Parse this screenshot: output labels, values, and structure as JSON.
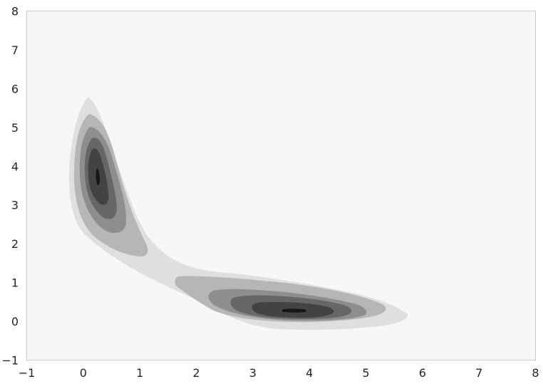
{
  "chart_data": {
    "type": "contour",
    "title": "",
    "xlabel": "",
    "ylabel": "",
    "xlim": [
      -1,
      8
    ],
    "ylim": [
      -1,
      8
    ],
    "xticks": [
      "−1",
      "0",
      "1",
      "2",
      "3",
      "4",
      "5",
      "6",
      "7",
      "8"
    ],
    "yticks": [
      "−1",
      "0",
      "1",
      "2",
      "3",
      "4",
      "5",
      "6",
      "7",
      "8"
    ],
    "grid": false,
    "legend": "none",
    "background_color": "#f7f7f7",
    "border_color": "#cccccc",
    "fill_colors": [
      "#dfdfdf",
      "#b6b6b6",
      "#8e8e8e",
      "#676767",
      "#434343",
      "#171717"
    ],
    "description": "filled density contours of two elongated clusters",
    "clusters": [
      {
        "name": "upper-left",
        "peak_x": 0.27,
        "peak_y": 3.7,
        "extent_x": [
          -0.25,
          1.1
        ],
        "extent_y": [
          1.6,
          5.75
        ]
      },
      {
        "name": "lower-right",
        "peak_x": 3.8,
        "peak_y": 0.25,
        "extent_x": [
          1.6,
          5.7
        ],
        "extent_y": [
          -0.25,
          1.1
        ]
      }
    ]
  }
}
